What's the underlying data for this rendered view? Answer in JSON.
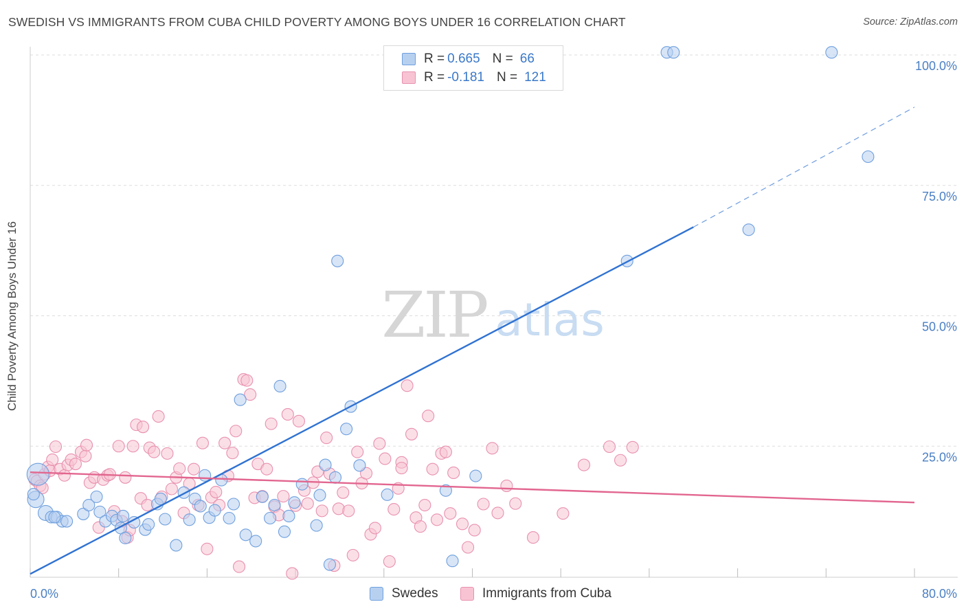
{
  "header": {
    "title": "SWEDISH VS IMMIGRANTS FROM CUBA CHILD POVERTY AMONG BOYS UNDER 16 CORRELATION CHART",
    "source": "Source: ZipAtlas.com"
  },
  "watermark": {
    "zip": "ZIP",
    "atlas": "atlas"
  },
  "legend": {
    "rows": [
      {
        "r_label": "R =",
        "r_value": "0.665",
        "n_label": "N =",
        "n_value": "66"
      },
      {
        "r_label": "R =",
        "r_value": "-0.181",
        "n_label": "N =",
        "n_value": "121"
      }
    ]
  },
  "bottom_legend": {
    "swedes": "Swedes",
    "cuba": "Immigrants from Cuba"
  },
  "colors": {
    "swedes_fill": "#b8d0f0",
    "swedes_stroke": "#6e9fdd",
    "swedes_line": "#2f72d2",
    "cuba_fill": "#f8c4d4",
    "cuba_stroke": "#e890ae",
    "cuba_line": "#e2668f",
    "tick_label": "#4a7fc4",
    "grid": "#dddddd"
  },
  "chart_data": {
    "type": "scatter",
    "title": "SWEDISH VS IMMIGRANTS FROM CUBA CHILD POVERTY AMONG BOYS UNDER 16 CORRELATION CHART",
    "xlabel": "",
    "ylabel": "Child Poverty Among Boys Under 16",
    "xlim": [
      0,
      80
    ],
    "ylim": [
      0,
      100
    ],
    "x_tick_labels": [
      "0.0%",
      "80.0%"
    ],
    "y_tick_labels": [
      "25.0%",
      "50.0%",
      "75.0%",
      "100.0%"
    ],
    "y_ticks": [
      25,
      50,
      75,
      100
    ],
    "grid": true,
    "legend_placement": "top-center",
    "series": [
      {
        "name": "Swedes",
        "points": [
          [
            0.7,
            19.6
          ],
          [
            0.5,
            14.8
          ],
          [
            1.4,
            12.2
          ],
          [
            1.9,
            11.4
          ],
          [
            2.4,
            11.4
          ],
          [
            2.9,
            10.6
          ],
          [
            3.3,
            10.6
          ],
          [
            4.8,
            12.0
          ],
          [
            5.3,
            13.7
          ],
          [
            6.0,
            15.3
          ],
          [
            6.3,
            12.4
          ],
          [
            6.8,
            10.6
          ],
          [
            7.4,
            11.6
          ],
          [
            7.8,
            10.8
          ],
          [
            8.2,
            9.3
          ],
          [
            8.4,
            11.6
          ],
          [
            8.6,
            7.4
          ],
          [
            9.4,
            10.4
          ],
          [
            10.4,
            9.0
          ],
          [
            10.7,
            10.0
          ],
          [
            11.5,
            13.9
          ],
          [
            11.8,
            14.9
          ],
          [
            12.2,
            11.0
          ],
          [
            13.2,
            6.0
          ],
          [
            13.9,
            16.1
          ],
          [
            14.4,
            10.9
          ],
          [
            14.9,
            14.9
          ],
          [
            15.4,
            13.5
          ],
          [
            15.8,
            19.4
          ],
          [
            16.2,
            11.3
          ],
          [
            16.7,
            12.7
          ],
          [
            17.3,
            18.5
          ],
          [
            18.0,
            11.2
          ],
          [
            18.4,
            13.9
          ],
          [
            19.0,
            33.9
          ],
          [
            19.5,
            8.0
          ],
          [
            20.4,
            6.8
          ],
          [
            21.0,
            15.3
          ],
          [
            21.7,
            11.2
          ],
          [
            22.1,
            13.7
          ],
          [
            22.6,
            36.5
          ],
          [
            23.0,
            8.6
          ],
          [
            23.4,
            11.6
          ],
          [
            23.9,
            14.2
          ],
          [
            24.6,
            17.7
          ],
          [
            25.9,
            9.8
          ],
          [
            26.2,
            15.6
          ],
          [
            26.7,
            21.4
          ],
          [
            27.1,
            2.3
          ],
          [
            27.6,
            19.0
          ],
          [
            28.6,
            28.3
          ],
          [
            29.0,
            32.6
          ],
          [
            29.8,
            21.3
          ],
          [
            32.3,
            15.7
          ],
          [
            37.6,
            16.5
          ],
          [
            38.2,
            3.0
          ],
          [
            40.3,
            19.3
          ],
          [
            54.0,
            60.5
          ],
          [
            57.6,
            100.5
          ],
          [
            58.2,
            100.5
          ],
          [
            65.0,
            66.5
          ],
          [
            72.5,
            100.5
          ],
          [
            75.8,
            80.5
          ],
          [
            27.8,
            60.5
          ],
          [
            0.3,
            15.8
          ],
          [
            2.2,
            11.4
          ]
        ]
      },
      {
        "name": "Immigrants from Cuba",
        "points": [
          [
            0.4,
            18.6
          ],
          [
            0.6,
            18.3
          ],
          [
            0.9,
            17.4
          ],
          [
            1.1,
            17.0
          ],
          [
            1.3,
            19.6
          ],
          [
            1.6,
            21.0
          ],
          [
            1.8,
            20.3
          ],
          [
            2.0,
            22.4
          ],
          [
            2.3,
            24.9
          ],
          [
            2.7,
            20.6
          ],
          [
            3.1,
            19.4
          ],
          [
            3.4,
            21.4
          ],
          [
            3.7,
            22.4
          ],
          [
            4.1,
            21.6
          ],
          [
            4.6,
            23.9
          ],
          [
            5.0,
            23.1
          ],
          [
            5.1,
            25.2
          ],
          [
            5.4,
            18.0
          ],
          [
            5.8,
            19.0
          ],
          [
            6.2,
            9.4
          ],
          [
            6.6,
            18.6
          ],
          [
            7.0,
            19.4
          ],
          [
            7.2,
            19.6
          ],
          [
            7.6,
            12.5
          ],
          [
            8.0,
            25.0
          ],
          [
            8.3,
            10.6
          ],
          [
            8.6,
            19.0
          ],
          [
            8.8,
            7.5
          ],
          [
            9.0,
            8.9
          ],
          [
            9.3,
            25.0
          ],
          [
            9.6,
            29.1
          ],
          [
            10.0,
            15.0
          ],
          [
            10.2,
            28.7
          ],
          [
            10.6,
            13.7
          ],
          [
            10.8,
            24.7
          ],
          [
            11.2,
            23.9
          ],
          [
            11.6,
            30.7
          ],
          [
            11.9,
            15.3
          ],
          [
            12.4,
            23.6
          ],
          [
            12.8,
            16.8
          ],
          [
            13.2,
            19.0
          ],
          [
            13.5,
            20.7
          ],
          [
            13.9,
            12.2
          ],
          [
            14.4,
            17.8
          ],
          [
            14.8,
            20.6
          ],
          [
            15.2,
            13.7
          ],
          [
            15.6,
            25.6
          ],
          [
            16.0,
            5.3
          ],
          [
            16.4,
            15.2
          ],
          [
            16.8,
            16.2
          ],
          [
            17.1,
            13.7
          ],
          [
            17.6,
            25.6
          ],
          [
            17.9,
            19.3
          ],
          [
            18.3,
            23.7
          ],
          [
            18.6,
            27.9
          ],
          [
            18.9,
            1.9
          ],
          [
            19.3,
            37.8
          ],
          [
            19.6,
            37.6
          ],
          [
            19.9,
            34.9
          ],
          [
            20.3,
            15.1
          ],
          [
            20.6,
            21.6
          ],
          [
            21.0,
            15.4
          ],
          [
            21.4,
            20.6
          ],
          [
            21.8,
            29.3
          ],
          [
            22.1,
            13.4
          ],
          [
            22.5,
            11.8
          ],
          [
            22.9,
            15.4
          ],
          [
            23.3,
            31.1
          ],
          [
            23.7,
            0.6
          ],
          [
            24.0,
            13.6
          ],
          [
            24.3,
            29.8
          ],
          [
            24.8,
            16.5
          ],
          [
            25.1,
            14.0
          ],
          [
            25.6,
            18.0
          ],
          [
            26.0,
            20.1
          ],
          [
            26.4,
            12.6
          ],
          [
            26.8,
            26.6
          ],
          [
            27.1,
            19.7
          ],
          [
            27.5,
            2.1
          ],
          [
            27.9,
            13.0
          ],
          [
            28.3,
            16.1
          ],
          [
            28.8,
            12.6
          ],
          [
            29.2,
            4.1
          ],
          [
            29.6,
            23.9
          ],
          [
            30.0,
            17.9
          ],
          [
            30.4,
            19.8
          ],
          [
            30.8,
            8.1
          ],
          [
            31.2,
            9.3
          ],
          [
            31.6,
            25.5
          ],
          [
            32.1,
            22.6
          ],
          [
            32.5,
            2.9
          ],
          [
            32.9,
            12.9
          ],
          [
            33.3,
            16.9
          ],
          [
            33.6,
            21.9
          ],
          [
            34.1,
            36.6
          ],
          [
            34.5,
            27.3
          ],
          [
            34.9,
            11.3
          ],
          [
            35.3,
            9.6
          ],
          [
            35.7,
            13.7
          ],
          [
            36.0,
            30.8
          ],
          [
            36.4,
            20.6
          ],
          [
            36.8,
            10.9
          ],
          [
            37.2,
            23.6
          ],
          [
            37.6,
            23.9
          ],
          [
            38.0,
            12.1
          ],
          [
            38.3,
            19.9
          ],
          [
            39.1,
            10.1
          ],
          [
            39.6,
            5.6
          ],
          [
            40.2,
            8.9
          ],
          [
            41.0,
            13.9
          ],
          [
            41.8,
            24.6
          ],
          [
            42.3,
            12.2
          ],
          [
            43.1,
            17.4
          ],
          [
            43.9,
            14.0
          ],
          [
            45.5,
            7.5
          ],
          [
            48.2,
            12.1
          ],
          [
            50.1,
            21.4
          ],
          [
            52.4,
            24.9
          ],
          [
            53.4,
            22.3
          ],
          [
            54.5,
            24.8
          ],
          [
            33.6,
            20.8
          ]
        ]
      }
    ],
    "trend_lines": [
      {
        "series": "Swedes",
        "from": [
          0,
          0.5
        ],
        "to": [
          60,
          67.0
        ],
        "dashed_to": [
          80,
          90.0
        ]
      },
      {
        "series": "Immigrants from Cuba",
        "from": [
          0,
          20.0
        ],
        "to": [
          80,
          14.2
        ]
      }
    ]
  }
}
